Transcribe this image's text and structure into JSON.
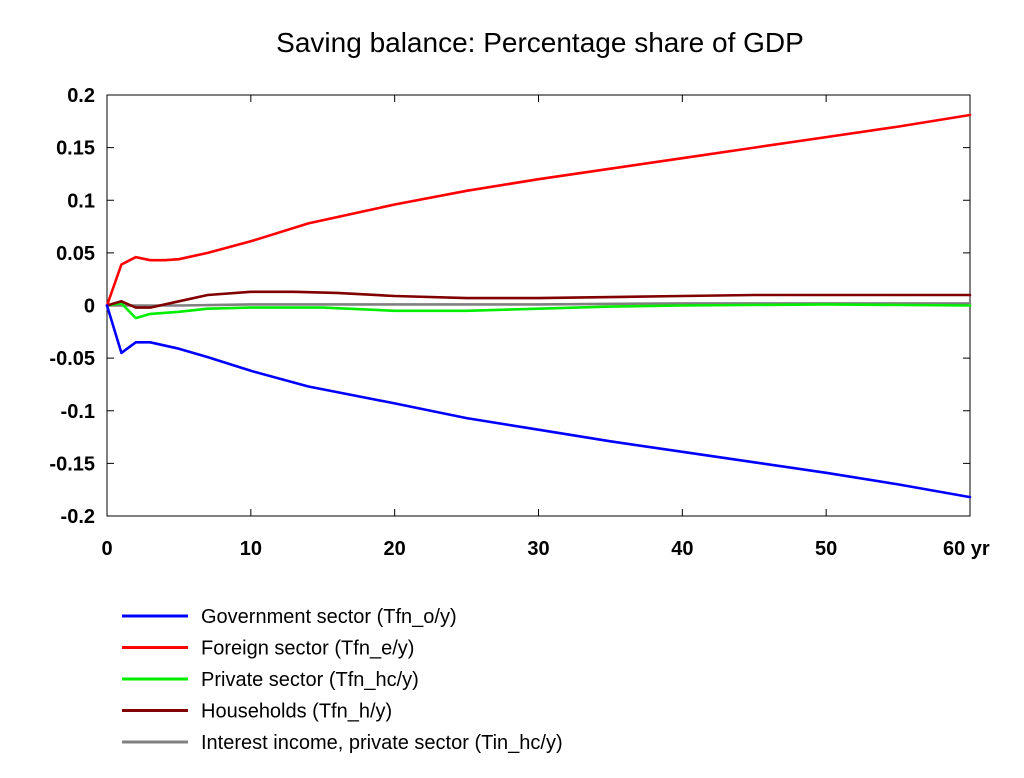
{
  "chart_data": {
    "type": "line",
    "title": "Saving balance: Percentage share of GDP",
    "xlabel": "",
    "ylabel": "",
    "x_unit_label": "yr",
    "xlim": [
      0,
      60
    ],
    "ylim": [
      -0.2,
      0.2
    ],
    "x_ticks": [
      0,
      10,
      20,
      30,
      40,
      50,
      60
    ],
    "x_tick_labels": [
      "0",
      "10",
      "20",
      "30",
      "40",
      "50",
      "60 yr"
    ],
    "y_ticks": [
      0.2,
      0.15,
      0.1,
      0.05,
      0,
      -0.05,
      -0.1,
      -0.15,
      -0.2
    ],
    "y_tick_labels": [
      "0.2",
      "0.15",
      "0.1",
      "0.05",
      "0",
      "-0.05",
      "-0.1",
      "-0.15",
      "-0.2"
    ],
    "grid": false,
    "legend_position": "bottom-left",
    "series": [
      {
        "name": "Government sector (Tfn_o/y)",
        "color": "#0000ff",
        "x": [
          0,
          1,
          2,
          3,
          5,
          7,
          10,
          14,
          20,
          25,
          30,
          35,
          40,
          45,
          50,
          55,
          60
        ],
        "values": [
          0,
          -0.045,
          -0.035,
          -0.035,
          -0.041,
          -0.049,
          -0.062,
          -0.077,
          -0.093,
          -0.107,
          -0.118,
          -0.129,
          -0.139,
          -0.149,
          -0.159,
          -0.17,
          -0.182
        ]
      },
      {
        "name": "Foreign sector (Tfn_e/y)",
        "color": "#ff0000",
        "x": [
          0,
          1,
          2,
          3,
          4,
          5,
          7,
          10,
          14,
          20,
          25,
          30,
          35,
          40,
          45,
          50,
          55,
          60
        ],
        "values": [
          0,
          0.039,
          0.046,
          0.043,
          0.043,
          0.044,
          0.05,
          0.061,
          0.078,
          0.096,
          0.109,
          0.12,
          0.13,
          0.14,
          0.15,
          0.16,
          0.17,
          0.181
        ]
      },
      {
        "name": "Private sector (Tfn_hc/y)",
        "color": "#00ee00",
        "x": [
          0,
          1,
          2,
          3,
          5,
          7,
          10,
          15,
          20,
          25,
          30,
          35,
          40,
          50,
          60
        ],
        "values": [
          0,
          0.002,
          -0.012,
          -0.008,
          -0.006,
          -0.003,
          -0.002,
          -0.002,
          -0.005,
          -0.005,
          -0.003,
          -0.001,
          0,
          0.001,
          0
        ]
      },
      {
        "name": "Households (Tfn_h/y)",
        "color": "#800000",
        "x": [
          0,
          1,
          2,
          3,
          5,
          7,
          10,
          13,
          16,
          20,
          25,
          30,
          35,
          40,
          45,
          50,
          55,
          60
        ],
        "values": [
          0,
          0.004,
          -0.002,
          -0.002,
          0.004,
          0.01,
          0.013,
          0.013,
          0.012,
          0.009,
          0.007,
          0.007,
          0.008,
          0.009,
          0.01,
          0.01,
          0.01,
          0.01
        ]
      },
      {
        "name": "Interest income, private sector (Tin_hc/y)",
        "color": "#808080",
        "x": [
          0,
          5,
          10,
          20,
          30,
          40,
          50,
          60
        ],
        "values": [
          0,
          0,
          0.001,
          0.001,
          0.001,
          0.002,
          0.002,
          0.002
        ]
      }
    ]
  }
}
